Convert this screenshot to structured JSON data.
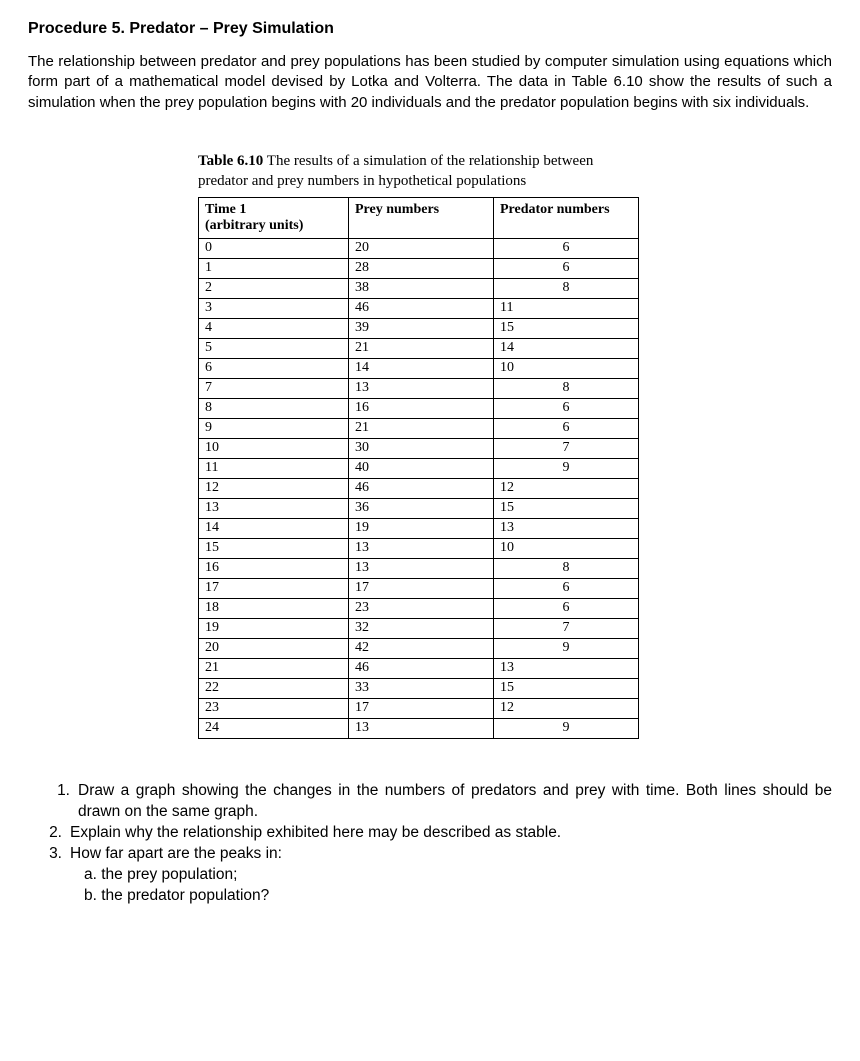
{
  "heading": "Procedure 5. Predator – Prey Simulation",
  "intro": "The relationship between predator and prey populations has been studied by computer simulation using equations which form part of a mathematical model devised by Lotka and Volterra. The data in Table 6.10 show the results of such a simulation when the prey population begins with 20 individuals and the predator population begins with six individuals.",
  "table": {
    "caption_bold": "Table 6.10",
    "caption_rest": " The results of a simulation of the relationship between predator and prey numbers in hypothetical populations",
    "columns": {
      "time_line1": "Time 1",
      "time_line2": "(arbitrary units)",
      "prey": "Prey numbers",
      "predator": "Predator numbers"
    },
    "rows": [
      {
        "t": "0",
        "prey": "20",
        "pred": "6"
      },
      {
        "t": "1",
        "prey": "28",
        "pred": "6"
      },
      {
        "t": "2",
        "prey": "38",
        "pred": "8"
      },
      {
        "t": "3",
        "prey": "46",
        "pred": "11"
      },
      {
        "t": "4",
        "prey": "39",
        "pred": "15"
      },
      {
        "t": "5",
        "prey": "21",
        "pred": "14"
      },
      {
        "t": "6",
        "prey": "14",
        "pred": "10"
      },
      {
        "t": "7",
        "prey": "13",
        "pred": "8"
      },
      {
        "t": "8",
        "prey": "16",
        "pred": "6"
      },
      {
        "t": "9",
        "prey": "21",
        "pred": "6"
      },
      {
        "t": "10",
        "prey": "30",
        "pred": "7"
      },
      {
        "t": "11",
        "prey": "40",
        "pred": "9"
      },
      {
        "t": "12",
        "prey": "46",
        "pred": "12"
      },
      {
        "t": "13",
        "prey": "36",
        "pred": "15"
      },
      {
        "t": "14",
        "prey": "19",
        "pred": "13"
      },
      {
        "t": "15",
        "prey": "13",
        "pred": "10"
      },
      {
        "t": "16",
        "prey": "13",
        "pred": "8"
      },
      {
        "t": "17",
        "prey": "17",
        "pred": "6"
      },
      {
        "t": "18",
        "prey": "23",
        "pred": "6"
      },
      {
        "t": "19",
        "prey": "32",
        "pred": "7"
      },
      {
        "t": "20",
        "prey": "42",
        "pred": "9"
      },
      {
        "t": "21",
        "prey": "46",
        "pred": "13"
      },
      {
        "t": "22",
        "prey": "33",
        "pred": "15"
      },
      {
        "t": "23",
        "prey": "17",
        "pred": "12"
      },
      {
        "t": "24",
        "prey": "13",
        "pred": "9"
      }
    ]
  },
  "questions": {
    "q1_num": "1.",
    "q1": "Draw a graph showing the changes in the numbers of predators and prey with time. Both lines should be drawn on the same graph.",
    "q2_num": "2.",
    "q2": "Explain why the relationship exhibited here may be described as stable.",
    "q3_num": "3.",
    "q3": "How far apart are the peaks in:",
    "q3a": "a. the prey population;",
    "q3b": "b. the predator population?"
  }
}
